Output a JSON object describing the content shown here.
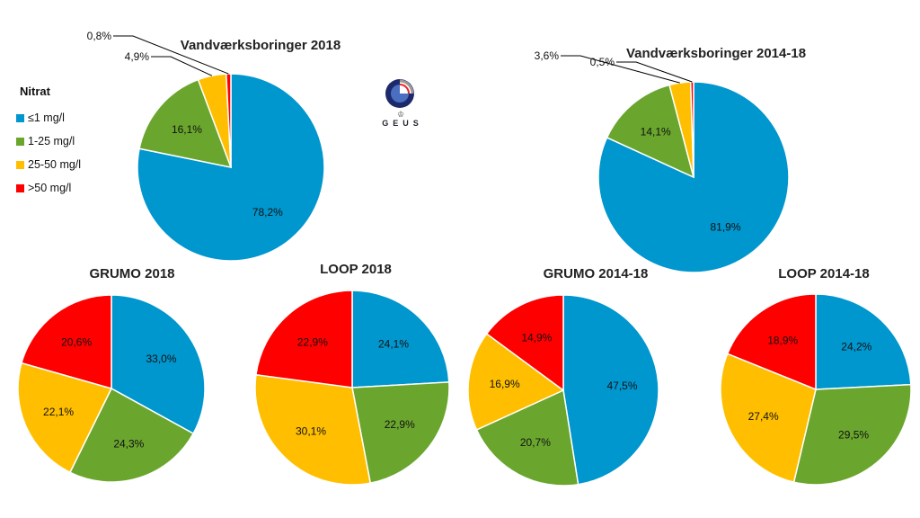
{
  "legend": {
    "title": "Nitrat",
    "items": [
      {
        "label": "≤1 mg/l",
        "color": "#0096CE"
      },
      {
        "label": "1-25 mg/l",
        "color": "#6AA62E"
      },
      {
        "label": "25-50 mg/l",
        "color": "#FFBF00"
      },
      {
        "label": ">50 mg/l",
        "color": "#FF0000"
      }
    ]
  },
  "logo": {
    "text": "GEUS"
  },
  "chart_data": [
    {
      "type": "pie",
      "title": "Vandværksboringer 2018",
      "categories": [
        "≤1 mg/l",
        "1-25 mg/l",
        "25-50 mg/l",
        ">50 mg/l"
      ],
      "values": [
        78.2,
        16.1,
        4.9,
        0.8
      ],
      "labels": [
        "78,2%",
        "16,1%",
        "4,9%",
        "0,8%"
      ]
    },
    {
      "type": "pie",
      "title": "Vandværksboringer 2014-18",
      "categories": [
        "≤1 mg/l",
        "1-25 mg/l",
        "25-50 mg/l",
        ">50 mg/l"
      ],
      "values": [
        81.9,
        14.1,
        3.6,
        0.5
      ],
      "labels": [
        "81,9%",
        "14,1%",
        "3,6%",
        "0,5%"
      ]
    },
    {
      "type": "pie",
      "title": "GRUMO 2018",
      "categories": [
        "≤1 mg/l",
        "1-25 mg/l",
        "25-50 mg/l",
        ">50 mg/l"
      ],
      "values": [
        33.0,
        24.3,
        22.1,
        20.6
      ],
      "labels": [
        "33,0%",
        "24,3%",
        "22,1%",
        "20,6%"
      ]
    },
    {
      "type": "pie",
      "title": "LOOP 2018",
      "categories": [
        "≤1 mg/l",
        "1-25 mg/l",
        "25-50 mg/l",
        ">50 mg/l"
      ],
      "values": [
        24.1,
        22.9,
        30.1,
        22.9
      ],
      "labels": [
        "24,1%",
        "22,9%",
        "30,1%",
        "22,9%"
      ]
    },
    {
      "type": "pie",
      "title": "GRUMO 2014-18",
      "categories": [
        "≤1 mg/l",
        "1-25 mg/l",
        "25-50 mg/l",
        ">50 mg/l"
      ],
      "values": [
        47.5,
        20.7,
        16.9,
        14.9
      ],
      "labels": [
        "47,5%",
        "20,7%",
        "16,9%",
        "14,9%"
      ]
    },
    {
      "type": "pie",
      "title": "LOOP 2014-18",
      "categories": [
        "≤1 mg/l",
        "1-25 mg/l",
        "25-50 mg/l",
        ">50 mg/l"
      ],
      "values": [
        24.2,
        29.5,
        27.4,
        18.9
      ],
      "labels": [
        "24,2%",
        "29,5%",
        "27,4%",
        "18,9%"
      ]
    }
  ]
}
